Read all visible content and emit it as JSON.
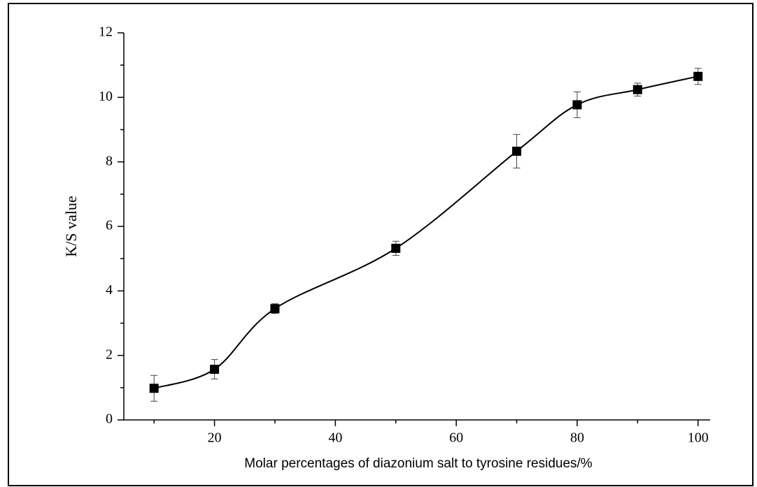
{
  "chart_data": {
    "type": "scatter",
    "x_label": "Molar percentages of diazonium salt to tyrosine residues/%",
    "y_label": "K/S value",
    "x": [
      10,
      20,
      30,
      50,
      70,
      80,
      90,
      100
    ],
    "values": [
      0.98,
      1.57,
      3.45,
      5.32,
      8.33,
      9.77,
      10.24,
      10.65
    ],
    "errors": [
      0.4,
      0.3,
      0.15,
      0.22,
      0.52,
      0.4,
      0.2,
      0.25
    ],
    "color": "#000000",
    "xlim": [
      5,
      102
    ],
    "xticks": [
      20,
      40,
      60,
      80,
      100
    ],
    "xminorticks": [
      10,
      30,
      50,
      70,
      90
    ],
    "ylim": [
      0,
      12
    ],
    "yticks": [
      0,
      2,
      4,
      6,
      8,
      10,
      12
    ],
    "yminorticks": [
      1,
      3,
      5,
      7,
      9,
      11
    ],
    "grid": false
  }
}
